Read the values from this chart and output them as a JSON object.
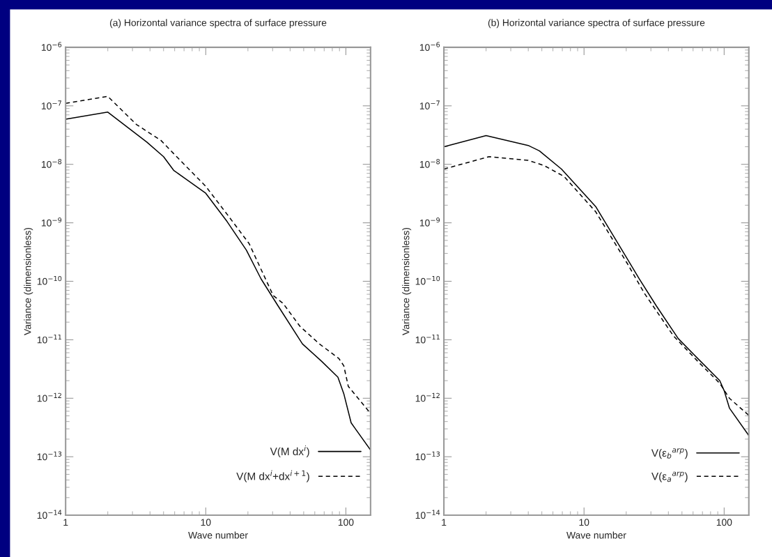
{
  "chart_data": [
    {
      "type": "line",
      "title": "(a) Horizontal variance spectra of surface pressure",
      "xlabel": "Wave number",
      "ylabel": "Variance (dimensionless)",
      "log": "xy",
      "grid": false,
      "legend": "bottom right",
      "xlim": [
        1,
        150
      ],
      "xticks": [
        1,
        10,
        100
      ],
      "ylim": [
        1e-14,
        1e-06
      ],
      "yticks": [
        {
          "value": 1e-06,
          "label": "10$^{−6}$"
        },
        {
          "value": 1e-07,
          "label": "10$^{−7}$"
        },
        {
          "value": 1e-08,
          "label": "10$^{−8}$"
        },
        {
          "value": 1e-09,
          "label": "10$^{−9}$"
        },
        {
          "value": 1e-10,
          "label": "10$^{−10}$"
        },
        {
          "value": 1e-11,
          "label": "10$^{−11}$"
        },
        {
          "value": 1e-12,
          "label": "10$^{−12}$"
        },
        {
          "value": 1e-13,
          "label": "10$^{−13}$"
        },
        {
          "value": 1e-14,
          "label": "10$^{−14}$"
        }
      ],
      "series": [
        {
          "name": "V(M dx$^{i}$)",
          "color": "#000000",
          "line_style": "solid",
          "x": [
            1,
            2,
            3.8,
            5,
            5.9,
            10,
            14.2,
            19.5,
            24.8,
            32.8,
            49,
            67,
            87.7,
            96.6,
            109,
            150
          ],
          "values": [
            5.9e-08,
            7.8e-08,
            2.4e-08,
            1.35e-08,
            7.9e-09,
            3.2e-09,
            1.05e-09,
            3.4e-10,
            1.1e-10,
            3.8e-11,
            8.5e-12,
            4.3e-12,
            2.3e-12,
            1.2e-12,
            3.8e-13,
            1.3e-13
          ]
        },
        {
          "name": "V(M dx$^{i}$+dx$^{i+1}$)",
          "color": "#000000",
          "line_style": "dashed",
          "x": [
            1,
            2,
            3.2,
            4.8,
            6.2,
            10,
            14.2,
            20.4,
            30.3,
            35.6,
            47,
            64.7,
            89,
            96.6,
            104,
            150
          ],
          "values": [
            1.1e-07,
            1.45e-07,
            4.8e-08,
            2.55e-08,
            1.35e-08,
            4.2e-09,
            1.4e-09,
            4.4e-10,
            5.7e-11,
            4.2e-11,
            1.7e-11,
            8.5e-12,
            4.8e-12,
            3.6e-12,
            1.6e-12,
            5.5e-13
          ]
        }
      ]
    },
    {
      "type": "line",
      "title": "(b) Horizontal variance spectra of surface pressure",
      "xlabel": "Wave number",
      "ylabel": "Variance (dimensionless)",
      "log": "xy",
      "grid": false,
      "legend": "bottom right",
      "xlim": [
        1,
        150
      ],
      "xticks": [
        1,
        10,
        100
      ],
      "ylim": [
        1e-14,
        1e-06
      ],
      "yticks": [
        {
          "value": 1e-06,
          "label": "10$^{−6}$"
        },
        {
          "value": 1e-07,
          "label": "10$^{−7}$"
        },
        {
          "value": 1e-08,
          "label": "10$^{−8}$"
        },
        {
          "value": 1e-09,
          "label": "10$^{−9}$"
        },
        {
          "value": 1e-10,
          "label": "10$^{−10}$"
        },
        {
          "value": 1e-11,
          "label": "10$^{−11}$"
        },
        {
          "value": 1e-12,
          "label": "10$^{−12}$"
        },
        {
          "value": 1e-13,
          "label": "10$^{−13}$"
        },
        {
          "value": 1e-14,
          "label": "10$^{−14}$"
        }
      ],
      "series": [
        {
          "name": "V(ε$_{b}$$^{arp}$)",
          "color": "#000000",
          "line_style": "solid",
          "x": [
            1,
            2,
            4,
            4.8,
            6.9,
            12.1,
            20.4,
            24.8,
            32.8,
            47,
            64.7,
            93,
            100,
            109,
            150
          ],
          "values": [
            2e-08,
            3.1e-08,
            2.1e-08,
            1.7e-08,
            8.3e-09,
            1.9e-09,
            2.4e-10,
            1.1e-10,
            3.8e-11,
            1.05e-11,
            4.8e-12,
            2e-12,
            1.35e-12,
            6.8e-13,
            2.3e-13
          ]
        },
        {
          "name": "V(ε$_{a}$$^{arp}$)",
          "color": "#000000",
          "line_style": "dashed",
          "x": [
            1,
            2.1,
            4,
            5.2,
            7.2,
            12.1,
            20.4,
            27,
            43.4,
            64.7,
            93,
            109,
            150
          ],
          "values": [
            8.3e-09,
            1.35e-08,
            1.17e-08,
            9.5e-09,
            6.2e-09,
            1.55e-09,
            2e-10,
            6.2e-11,
            1.17e-11,
            4.3e-12,
            1.8e-12,
            1e-12,
            5.1e-13
          ]
        }
      ]
    }
  ]
}
